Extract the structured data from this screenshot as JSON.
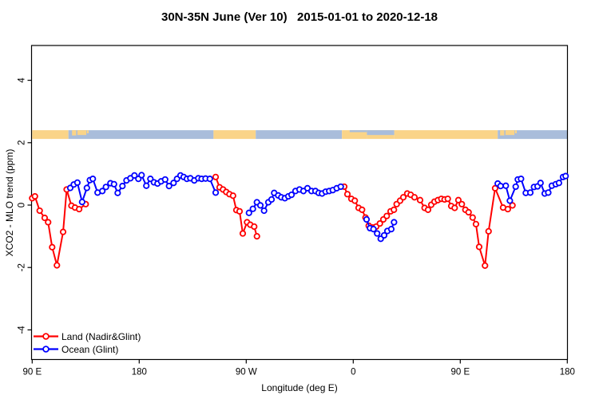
{
  "page": {
    "background": "#FFFFFF"
  },
  "header": {
    "title": "30N-35N June (Ver 10)   2015-01-01 to 2020-12-18"
  },
  "chart_data": {
    "type": "line",
    "title": "30N-35N June (Ver 10)   2015-01-01 to 2020-12-18",
    "xlabel": "Longitude (deg E)",
    "ylabel": "XCO2 - MLO trend (ppm)",
    "x_axis": {
      "description": "longitude axis starting at 90E, wrapping eastward through 180, 90W, 0, 90E to 180 (450 degrees total)",
      "range_deg_from_left": [
        0,
        450
      ],
      "ticks": [
        {
          "pos": 0,
          "label": "90 E"
        },
        {
          "pos": 90,
          "label": "180"
        },
        {
          "pos": 180,
          "label": "90 W"
        },
        {
          "pos": 270,
          "label": "0"
        },
        {
          "pos": 360,
          "label": "90 E"
        },
        {
          "pos": 450,
          "label": "180"
        }
      ]
    },
    "y_axis": {
      "range": [
        -4.95,
        5.1
      ],
      "ticks": [
        {
          "val": 4,
          "label": "4"
        },
        {
          "val": 2,
          "label": "2"
        },
        {
          "val": 0,
          "label": "0"
        },
        {
          "val": -2,
          "label": "-2"
        },
        {
          "val": -4,
          "label": "-4"
        }
      ],
      "grid": false
    },
    "map_band": {
      "description": "30N-35N world-map strip drawn across the plot near y=2.1-2.4 ppm; land=tan, ocean=blue-gray",
      "top_ppm": 2.4,
      "bottom_ppm": 2.12,
      "land_color": "#FAD488",
      "ocean_color": "#A9BDDB",
      "rects": [
        {
          "from": 0,
          "to": 30.5,
          "type": "land",
          "top": 0,
          "bottom": 1
        },
        {
          "from": 30.5,
          "to": 152.5,
          "type": "ocean",
          "top": 0,
          "bottom": 1
        },
        {
          "from": 33.5,
          "to": 37,
          "type": "land",
          "top": 0,
          "bottom": 0.6
        },
        {
          "from": 38,
          "to": 45.5,
          "type": "land",
          "top": 0,
          "bottom": 0.55
        },
        {
          "from": 46,
          "to": 47.5,
          "type": "land",
          "top": 0,
          "bottom": 0.35
        },
        {
          "from": 152.5,
          "to": 188,
          "type": "land",
          "top": 0,
          "bottom": 1
        },
        {
          "from": 188,
          "to": 260.5,
          "type": "ocean",
          "top": 0,
          "bottom": 1
        },
        {
          "from": 260.5,
          "to": 281.5,
          "type": "land",
          "top": 0,
          "bottom": 1
        },
        {
          "from": 267,
          "to": 281.5,
          "type": "ocean",
          "top": 0,
          "bottom": 0.22
        },
        {
          "from": 281.5,
          "to": 304.5,
          "type": "land",
          "top": 0,
          "bottom": 1
        },
        {
          "from": 281.5,
          "to": 304.5,
          "type": "ocean",
          "top": 0,
          "bottom": 0.55
        },
        {
          "from": 304.5,
          "to": 391.5,
          "type": "land",
          "top": 0,
          "bottom": 1
        },
        {
          "from": 391.5,
          "to": 450,
          "type": "ocean",
          "top": 0,
          "bottom": 1
        },
        {
          "from": 393.5,
          "to": 397,
          "type": "land",
          "top": 0,
          "bottom": 0.6
        },
        {
          "from": 398,
          "to": 405.5,
          "type": "land",
          "top": 0,
          "bottom": 0.55
        },
        {
          "from": 406,
          "to": 407.5,
          "type": "land",
          "top": 0,
          "bottom": 0.35
        }
      ]
    },
    "series": [
      {
        "name": "Land (Nadir&Glint)",
        "color": "#FF0000",
        "marker": "open-circle",
        "segments": [
          [
            [
              0,
              0.22
            ],
            [
              2.3,
              0.28
            ],
            [
              6.3,
              -0.18
            ],
            [
              10.5,
              -0.41
            ],
            [
              13.4,
              -0.55
            ],
            [
              16.8,
              -1.35
            ],
            [
              20.8,
              -1.93
            ],
            [
              26,
              -0.86
            ],
            [
              29,
              0.5
            ],
            [
              33,
              -0.02
            ],
            [
              36,
              -0.08
            ],
            [
              39.5,
              -0.13
            ],
            [
              45,
              0.03
            ]
          ],
          [
            [
              154.3,
              0.9
            ],
            [
              157.6,
              0.57
            ],
            [
              160.5,
              0.5
            ],
            [
              163.2,
              0.42
            ],
            [
              165.9,
              0.35
            ],
            [
              168.9,
              0.3
            ],
            [
              171.7,
              -0.16
            ],
            [
              174.4,
              -0.2
            ],
            [
              177.1,
              -0.91
            ],
            [
              180.7,
              -0.55
            ],
            [
              183.4,
              -0.63
            ],
            [
              186.7,
              -0.69
            ],
            [
              189,
              -1.0
            ]
          ],
          [
            [
              262.4,
              0.59
            ],
            [
              265.1,
              0.35
            ],
            [
              268.4,
              0.2
            ],
            [
              271.3,
              0.14
            ],
            [
              274.5,
              -0.09
            ],
            [
              277.4,
              -0.15
            ],
            [
              280.3,
              -0.4
            ],
            [
              283,
              -0.66
            ],
            [
              286.4,
              -0.72
            ],
            [
              289.3,
              -0.69
            ],
            [
              292.4,
              -0.59
            ],
            [
              295.3,
              -0.46
            ],
            [
              298.2,
              -0.35
            ],
            [
              301.4,
              -0.2
            ],
            [
              304.2,
              -0.15
            ],
            [
              306.5,
              0.03
            ],
            [
              309.4,
              0.14
            ],
            [
              312.1,
              0.25
            ],
            [
              315.4,
              0.37
            ],
            [
              318.3,
              0.33
            ],
            [
              321.5,
              0.25
            ],
            [
              326.2,
              0.16
            ],
            [
              330,
              -0.09
            ],
            [
              332.9,
              -0.15
            ],
            [
              335.6,
              0.01
            ],
            [
              338.3,
              0.11
            ],
            [
              341.2,
              0.16
            ],
            [
              344.1,
              0.2
            ],
            [
              346.8,
              0.18
            ],
            [
              349.5,
              0.2
            ],
            [
              352.4,
              -0.03
            ],
            [
              355.3,
              -0.09
            ],
            [
              358.4,
              0.16
            ],
            [
              361.3,
              0.03
            ],
            [
              364.3,
              -0.15
            ],
            [
              367,
              -0.23
            ],
            [
              370.4,
              -0.4
            ],
            [
              373.2,
              -0.61
            ],
            [
              375.9,
              -1.34
            ],
            [
              380.8,
              -1.94
            ],
            [
              383.8,
              -0.84
            ],
            [
              389.3,
              0.54
            ],
            [
              396,
              -0.08
            ],
            [
              400,
              -0.13
            ],
            [
              403.9,
              -0.01
            ]
          ]
        ]
      },
      {
        "name": "Ocean (Glint)",
        "color": "#0000FF",
        "marker": "open-circle",
        "segments": [
          [
            [
              32,
              0.55
            ],
            [
              35,
              0.66
            ],
            [
              38,
              0.72
            ],
            [
              42,
              0.1
            ],
            [
              46,
              0.55
            ],
            [
              48.5,
              0.8
            ],
            [
              51,
              0.84
            ],
            [
              55,
              0.4
            ],
            [
              59,
              0.45
            ],
            [
              62,
              0.58
            ],
            [
              65.8,
              0.7
            ],
            [
              68.8,
              0.67
            ],
            [
              71.9,
              0.39
            ],
            [
              75.9,
              0.61
            ],
            [
              79.3,
              0.79
            ],
            [
              82.6,
              0.86
            ],
            [
              86,
              0.95
            ],
            [
              89.3,
              0.84
            ],
            [
              92,
              0.96
            ],
            [
              96,
              0.62
            ],
            [
              99.4,
              0.84
            ],
            [
              102.4,
              0.73
            ],
            [
              105.4,
              0.69
            ],
            [
              108.4,
              0.76
            ],
            [
              111.8,
              0.82
            ],
            [
              115.1,
              0.61
            ],
            [
              118.9,
              0.71
            ],
            [
              121.8,
              0.84
            ],
            [
              124.7,
              0.95
            ],
            [
              127.4,
              0.9
            ],
            [
              130.1,
              0.84
            ],
            [
              133,
              0.86
            ],
            [
              136.3,
              0.79
            ],
            [
              139.7,
              0.86
            ],
            [
              142.5,
              0.84
            ],
            [
              145.8,
              0.85
            ],
            [
              149.4,
              0.84
            ],
            [
              154.3,
              0.4
            ]
          ],
          [
            [
              182.3,
              -0.25
            ],
            [
              185.6,
              -0.12
            ],
            [
              189,
              0.09
            ],
            [
              191.9,
              -0.01
            ],
            [
              195,
              -0.18
            ],
            [
              198.6,
              0.09
            ],
            [
              201.3,
              0.18
            ],
            [
              203.5,
              0.39
            ],
            [
              206.9,
              0.31
            ],
            [
              209.5,
              0.25
            ],
            [
              212.5,
              0.22
            ],
            [
              215.4,
              0.28
            ],
            [
              218.1,
              0.33
            ],
            [
              221.4,
              0.45
            ],
            [
              224.8,
              0.5
            ],
            [
              228.1,
              0.45
            ],
            [
              231.5,
              0.54
            ],
            [
              234.9,
              0.45
            ],
            [
              238.2,
              0.45
            ],
            [
              240.9,
              0.39
            ],
            [
              243.8,
              0.37
            ],
            [
              246.8,
              0.43
            ],
            [
              249.8,
              0.45
            ],
            [
              252.8,
              0.48
            ],
            [
              256.1,
              0.54
            ],
            [
              259.5,
              0.59
            ]
          ],
          [
            [
              281.2,
              -0.46
            ],
            [
              284.1,
              -0.74
            ],
            [
              287,
              -0.77
            ],
            [
              290.1,
              -0.91
            ],
            [
              293.1,
              -1.08
            ],
            [
              296,
              -0.97
            ],
            [
              298.7,
              -0.83
            ],
            [
              302,
              -0.77
            ],
            [
              304.3,
              -0.55
            ]
          ],
          [
            [
              391.5,
              0.69
            ],
            [
              393.9,
              0.61
            ],
            [
              398.3,
              0.62
            ],
            [
              401.7,
              0.14
            ],
            [
              406.6,
              0.59
            ],
            [
              408.4,
              0.82
            ],
            [
              411.1,
              0.84
            ],
            [
              415.1,
              0.39
            ],
            [
              418.9,
              0.4
            ],
            [
              422,
              0.58
            ],
            [
              425,
              0.6
            ],
            [
              427.5,
              0.71
            ],
            [
              431,
              0.37
            ],
            [
              434,
              0.4
            ],
            [
              437,
              0.62
            ],
            [
              440.3,
              0.67
            ],
            [
              443,
              0.71
            ],
            [
              446.4,
              0.9
            ],
            [
              448.6,
              0.93
            ]
          ]
        ]
      }
    ],
    "legend": {
      "position": "bottom-left-inside-plot",
      "items": [
        "Land (Nadir&Glint)",
        "Ocean (Glint)"
      ]
    }
  }
}
